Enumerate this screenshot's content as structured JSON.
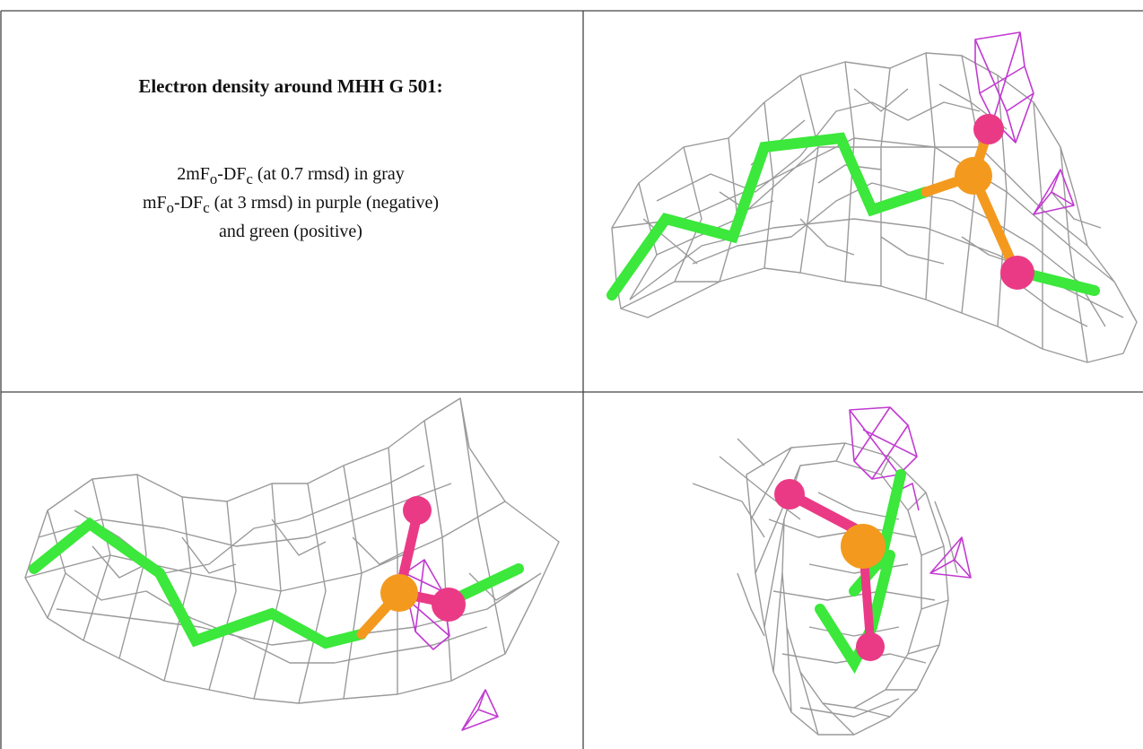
{
  "caption": {
    "title": "Electron density around MHH G 501:",
    "line1": {
      "pre": "2mF",
      "sub1": "o",
      "mid": "-DF",
      "sub2": "c",
      "post": " (at 0.7 rmsd) in gray"
    },
    "line2": {
      "pre": "mF",
      "sub1": "o",
      "mid": "-DF",
      "sub2": "c",
      "post": " (at 3 rmsd) in purple (negative)"
    },
    "line3": "and green (positive)"
  },
  "colors": {
    "mesh_gray": "#9a9a9a",
    "mesh_purple": "#c23ad1",
    "carbon": "#3be83b",
    "phosphorus": "#f39a1e",
    "oxygen": "#ea3a86",
    "border": "#444444"
  },
  "panels": [
    {
      "id": "top-right",
      "view": "side"
    },
    {
      "id": "bottom-left",
      "view": "front"
    },
    {
      "id": "bottom-right",
      "view": "end-on"
    }
  ]
}
